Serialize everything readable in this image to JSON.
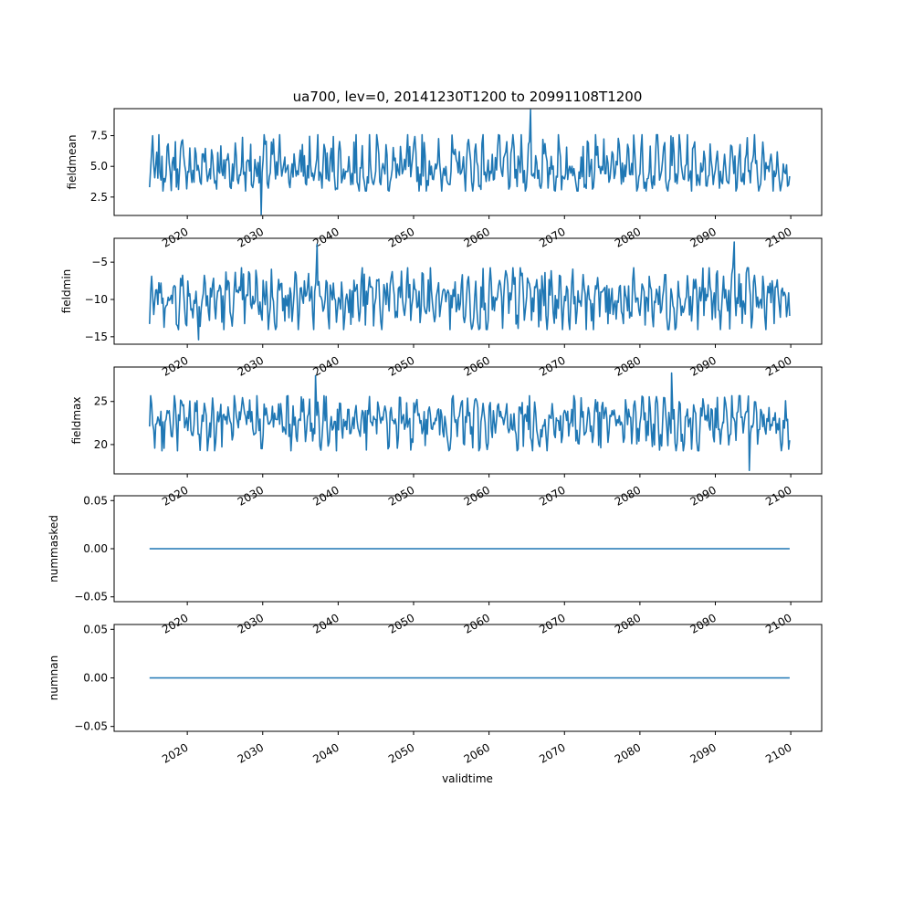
{
  "title": "ua700, lev=0, 20141230T1200 to 20991108T1200",
  "series_color": "#1f77b4",
  "x_axis": {
    "label": "validtime",
    "ticks": [
      2020,
      2030,
      2040,
      2050,
      2060,
      2070,
      2080,
      2090,
      2100
    ],
    "tick_labels": [
      "2020",
      "2030",
      "2040",
      "2050",
      "2060",
      "2070",
      "2080",
      "2090",
      "2100"
    ],
    "range": [
      2010.3,
      2104.1
    ],
    "rotation_deg": 30
  },
  "chart_data": [
    {
      "type": "line",
      "ylabel": "fieldmean",
      "ylim": [
        1.0,
        9.7
      ],
      "yticks": [
        2.5,
        5.0,
        7.5
      ],
      "ytick_labels": [
        "2.5",
        "5.0",
        "7.5"
      ],
      "x": [
        2015.0,
        2019.0,
        2023.0,
        2026.0,
        2028.5,
        2029.8,
        2033.0,
        2037.0,
        2041.0,
        2046.0,
        2048.5,
        2053.0,
        2057.0,
        2061.0,
        2064.0,
        2065.5,
        2068.0,
        2071.0,
        2074.0,
        2078.0,
        2082.0,
        2086.0,
        2090.0,
        2093.0,
        2097.0,
        2099.0,
        2099.85
      ],
      "y": [
        3.3,
        5.0,
        4.8,
        5.2,
        3.5,
        1.1,
        4.5,
        4.9,
        4.6,
        5.0,
        4.4,
        4.8,
        5.1,
        4.7,
        5.3,
        9.6,
        4.9,
        5.0,
        4.6,
        5.1,
        4.8,
        5.0,
        4.7,
        4.9,
        5.0,
        5.2,
        4.2
      ],
      "noise": {
        "baseline": 4.7,
        "amplitude_pos": 3.2,
        "amplitude_neg": 1.9
      }
    },
    {
      "type": "line",
      "ylabel": "fieldmin",
      "ylim": [
        -16.0,
        -1.8
      ],
      "yticks": [
        -15,
        -10,
        -5
      ],
      "ytick_labels": [
        "−15",
        "−10",
        "−5"
      ],
      "x": [
        2015.0,
        2019.0,
        2021.5,
        2025.0,
        2029.0,
        2033.0,
        2037.2,
        2041.0,
        2045.0,
        2049.0,
        2053.0,
        2057.0,
        2061.0,
        2065.0,
        2069.0,
        2073.0,
        2077.0,
        2081.0,
        2085.0,
        2089.0,
        2092.5,
        2096.0,
        2099.0,
        2099.85
      ],
      "y": [
        -13.3,
        -10.0,
        -15.4,
        -9.6,
        -10.2,
        -9.5,
        -2.6,
        -10.0,
        -9.8,
        -10.2,
        -9.7,
        -10.0,
        -10.1,
        -9.6,
        -10.0,
        -9.8,
        -10.2,
        -9.9,
        -10.0,
        -9.6,
        -2.3,
        -10.0,
        -9.5,
        -12.2
      ],
      "noise": {
        "baseline": -9.9,
        "amplitude_pos": 4.6,
        "amplitude_neg": 4.6
      }
    },
    {
      "type": "line",
      "ylabel": "fieldmax",
      "ylim": [
        16.6,
        29.0
      ],
      "yticks": [
        20,
        25
      ],
      "ytick_labels": [
        "20",
        "25"
      ],
      "x": [
        2015.0,
        2019.0,
        2023.0,
        2027.0,
        2031.0,
        2035.0,
        2037.0,
        2041.0,
        2045.0,
        2049.0,
        2053.0,
        2057.0,
        2061.0,
        2065.0,
        2069.0,
        2073.0,
        2077.0,
        2081.0,
        2084.2,
        2088.0,
        2091.0,
        2094.5,
        2097.0,
        2099.0,
        2099.85
      ],
      "y": [
        22.1,
        22.8,
        22.5,
        22.9,
        22.6,
        22.8,
        28.0,
        22.7,
        22.9,
        22.5,
        22.8,
        22.6,
        22.9,
        22.7,
        22.8,
        22.6,
        22.9,
        22.7,
        28.3,
        22.8,
        22.6,
        17.0,
        22.7,
        22.8,
        20.5
      ],
      "noise": {
        "baseline": 22.7,
        "amplitude_pos": 3.3,
        "amplitude_neg": 3.8
      }
    },
    {
      "type": "line",
      "ylabel": "nummasked",
      "ylim": [
        -0.055,
        0.055
      ],
      "yticks": [
        -0.05,
        0.0,
        0.05
      ],
      "ytick_labels": [
        "−0.05",
        "0.00",
        "0.05"
      ],
      "x": [
        2015.0,
        2099.85
      ],
      "y": [
        0.0,
        0.0
      ]
    },
    {
      "type": "line",
      "ylabel": "numnan",
      "ylim": [
        -0.055,
        0.055
      ],
      "yticks": [
        -0.05,
        0.0,
        0.05
      ],
      "ytick_labels": [
        "−0.05",
        "0.00",
        "0.05"
      ],
      "x": [
        2015.0,
        2099.85
      ],
      "y": [
        0.0,
        0.0
      ]
    }
  ]
}
